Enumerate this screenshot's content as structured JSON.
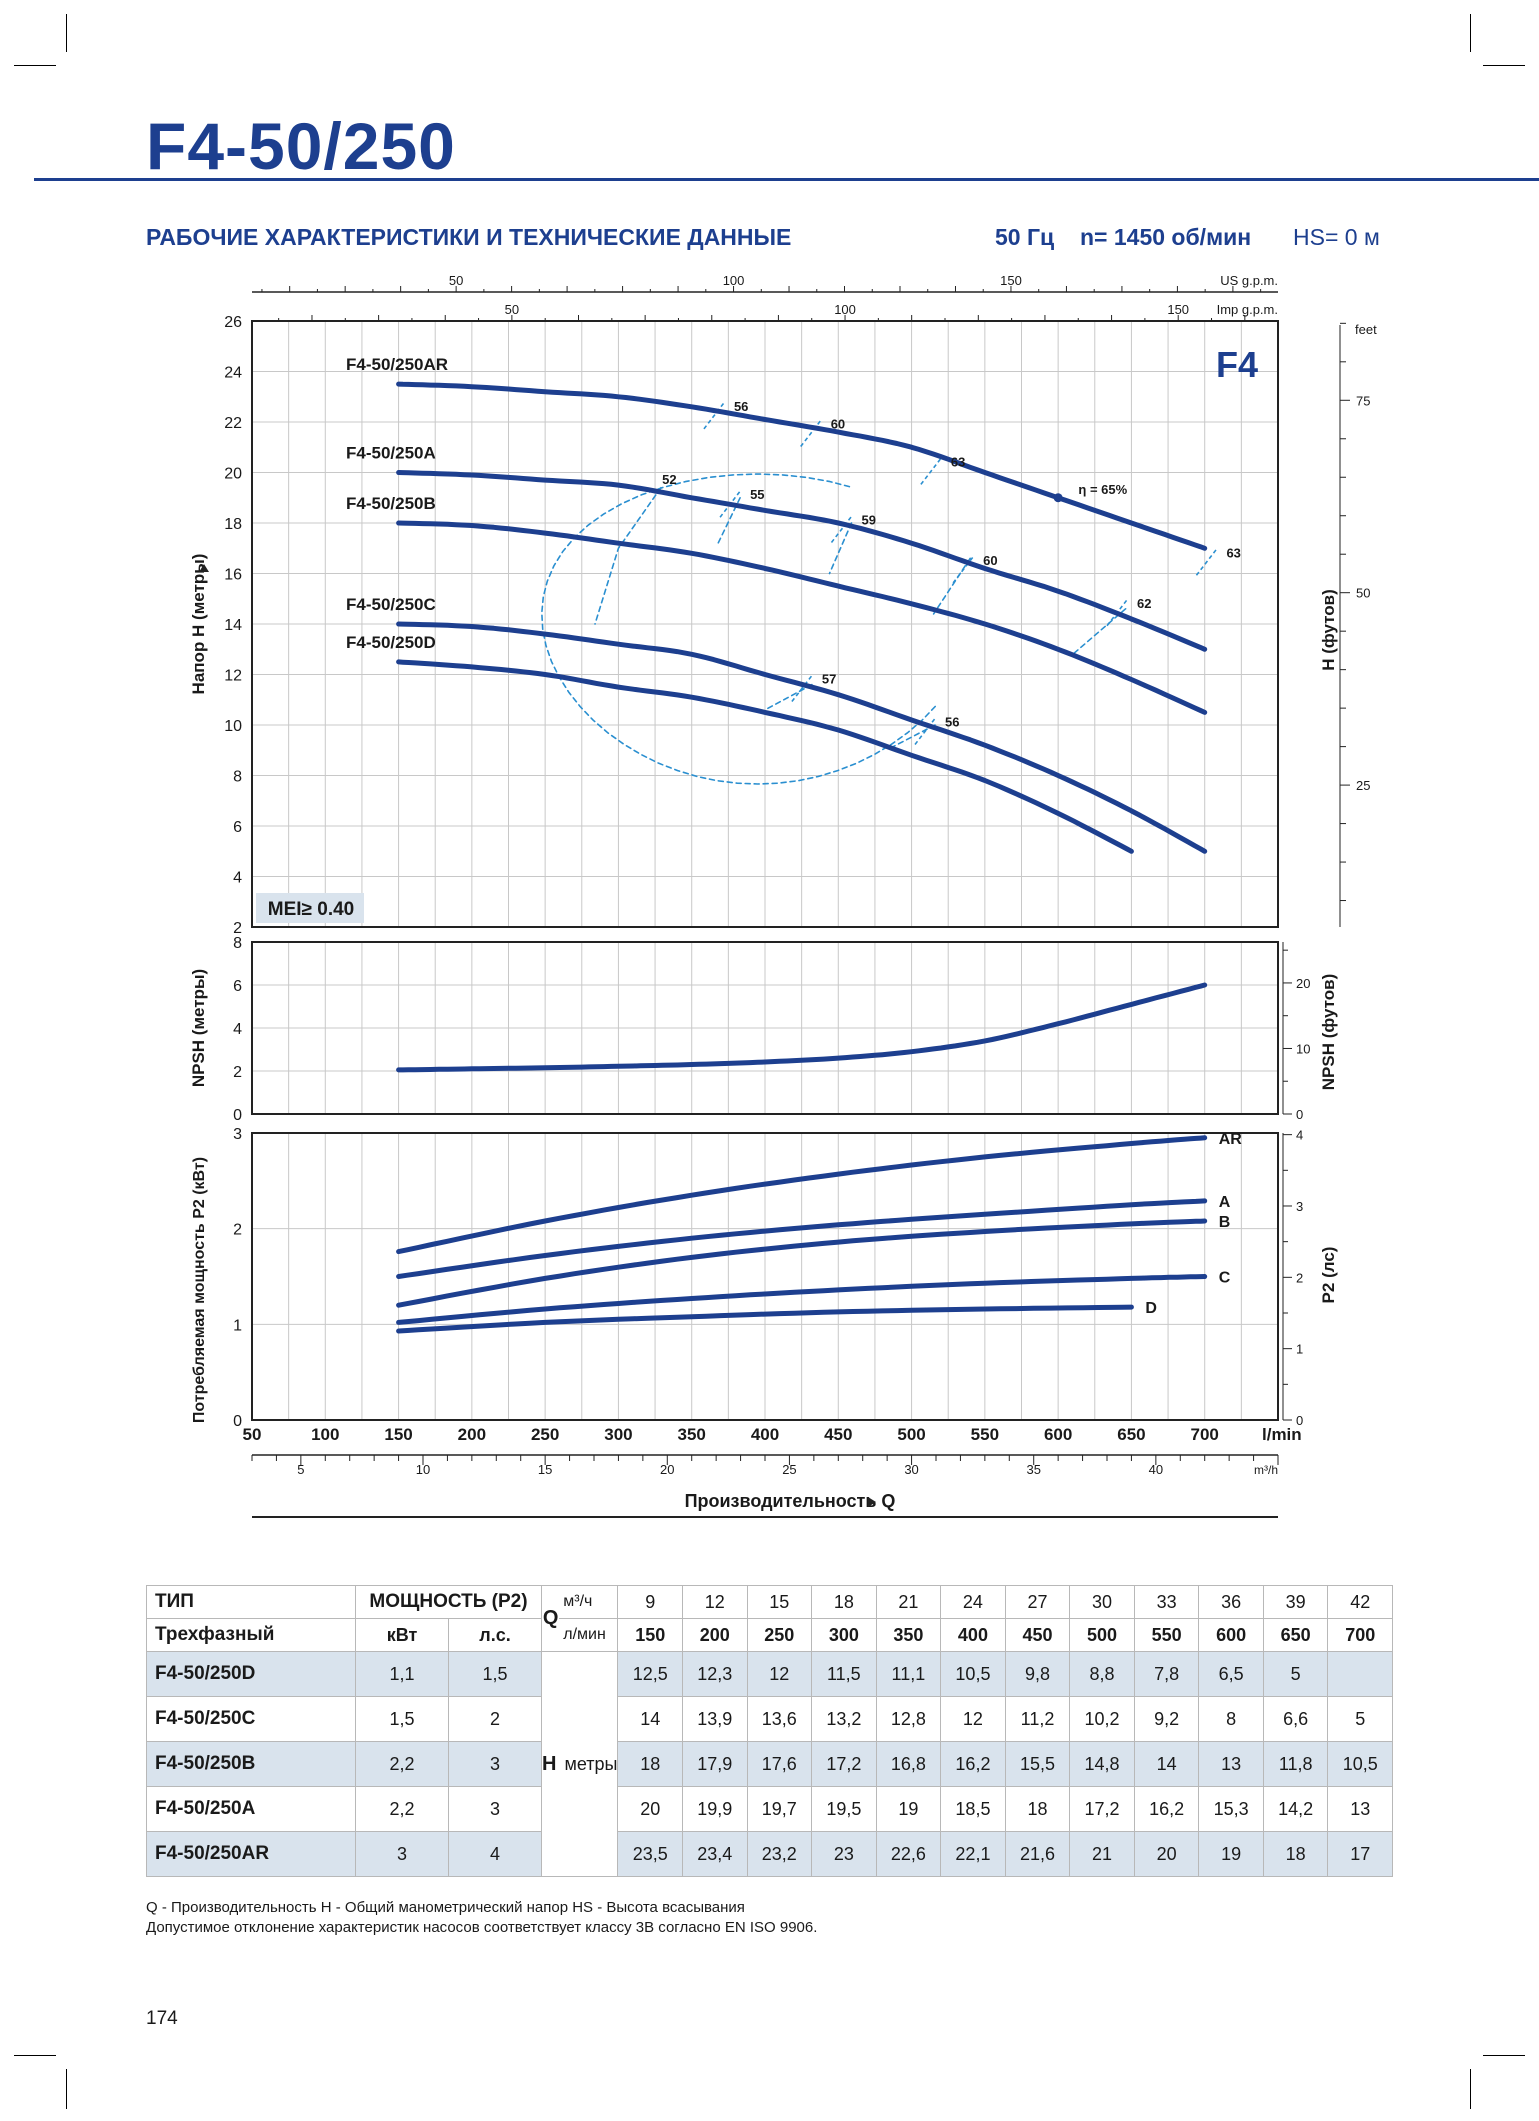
{
  "page": {
    "title": "F4-50/250",
    "subtitle": "РАБОЧИЕ ХАРАКТЕРИСТИКИ И ТЕХНИЧЕСКИЕ ДАННЫЕ",
    "frequency": "50 Гц",
    "speed": "n= 1450 об/мин",
    "hs": "HS= 0 м",
    "page_number": "174",
    "legend_line1": "Q - Производительность   H - Общий манометрический напор   HS - Высота всасывания",
    "legend_line2": "Допустимое отклонение характеристик насосов соответствует классу 3B согласно EN ISO 9906."
  },
  "colors": {
    "brand": "#1d3f8f",
    "curve": "#1d3f8f",
    "efficiency": "#2a8fd0",
    "grid": "#c8c8c8",
    "shade": "#d9e3ed"
  },
  "chart_data": [
    {
      "type": "line",
      "name": "head",
      "ylabel": "Напор H (метры)",
      "ylabel_right": "H (футов)",
      "xlim": [
        50,
        750
      ],
      "ylim": [
        2,
        26
      ],
      "yticks": [
        2,
        4,
        6,
        8,
        10,
        12,
        14,
        16,
        18,
        20,
        22,
        24,
        26
      ],
      "yticks_right": {
        "unit": "feet",
        "values": [
          25,
          50,
          75
        ]
      },
      "top_axis_us": {
        "label": "US g.p.m.",
        "ticks": [
          50,
          100,
          150
        ]
      },
      "top_axis_imp": {
        "label": "Imp g.p.m.",
        "ticks": [
          50,
          100,
          150
        ]
      },
      "badge": "F4",
      "mei": "MEI≥ 0.40",
      "series": [
        {
          "name": "F4-50/250AR",
          "x": [
            150,
            200,
            250,
            300,
            350,
            400,
            450,
            500,
            550,
            600,
            650,
            700
          ],
          "y": [
            23.5,
            23.4,
            23.2,
            23,
            22.6,
            22.1,
            21.6,
            21,
            20,
            19,
            18,
            17
          ]
        },
        {
          "name": "F4-50/250A",
          "x": [
            150,
            200,
            250,
            300,
            350,
            400,
            450,
            500,
            550,
            600,
            650,
            700
          ],
          "y": [
            20,
            19.9,
            19.7,
            19.5,
            19,
            18.5,
            18,
            17.2,
            16.2,
            15.3,
            14.2,
            13
          ]
        },
        {
          "name": "F4-50/250B",
          "x": [
            150,
            200,
            250,
            300,
            350,
            400,
            450,
            500,
            550,
            600,
            650,
            700
          ],
          "y": [
            18,
            17.9,
            17.6,
            17.2,
            16.8,
            16.2,
            15.5,
            14.8,
            14,
            13,
            11.8,
            10.5
          ]
        },
        {
          "name": "F4-50/250C",
          "x": [
            150,
            200,
            250,
            300,
            350,
            400,
            450,
            500,
            550,
            600,
            650,
            700
          ],
          "y": [
            14,
            13.9,
            13.6,
            13.2,
            12.8,
            12,
            11.2,
            10.2,
            9.2,
            8,
            6.6,
            5
          ]
        },
        {
          "name": "F4-50/250D",
          "x": [
            150,
            200,
            250,
            300,
            350,
            400,
            450,
            500,
            550,
            600,
            650
          ],
          "y": [
            12.5,
            12.3,
            12,
            11.5,
            11.1,
            10.5,
            9.8,
            8.8,
            7.8,
            6.5,
            5
          ]
        }
      ],
      "efficiency_labels": [
        {
          "text": "56",
          "x": 372,
          "y": 22.6
        },
        {
          "text": "60",
          "x": 438,
          "y": 21.9
        },
        {
          "text": "63",
          "x": 520,
          "y": 20.4
        },
        {
          "text": "η = 65%",
          "x": 607,
          "y": 19.3
        },
        {
          "text": "63",
          "x": 708,
          "y": 16.8
        },
        {
          "text": "52",
          "x": 323,
          "y": 19.7
        },
        {
          "text": "55",
          "x": 383,
          "y": 19.1
        },
        {
          "text": "59",
          "x": 459,
          "y": 18.1
        },
        {
          "text": "60",
          "x": 542,
          "y": 16.5
        },
        {
          "text": "62",
          "x": 647,
          "y": 14.8
        },
        {
          "text": "57",
          "x": 432,
          "y": 11.8
        },
        {
          "text": "56",
          "x": 516,
          "y": 10.1
        }
      ]
    },
    {
      "type": "line",
      "name": "npsh",
      "ylabel": "NPSH (метры)",
      "ylabel_right": "NPSH (футов)",
      "ylim": [
        0,
        8
      ],
      "yticks": [
        0,
        2,
        4,
        6,
        8
      ],
      "yticks_right": [
        0,
        10,
        20
      ],
      "series": [
        {
          "name": "NPSH",
          "x": [
            150,
            200,
            250,
            300,
            350,
            400,
            450,
            500,
            550,
            600,
            650,
            700
          ],
          "y": [
            2.05,
            2.1,
            2.15,
            2.22,
            2.3,
            2.42,
            2.6,
            2.9,
            3.4,
            4.2,
            5.1,
            6.0
          ]
        }
      ]
    },
    {
      "type": "line",
      "name": "power",
      "ylabel": "Потребляемая мощность P2 (кВт)",
      "ylabel_right": "P2 (лс)",
      "ylim": [
        0,
        3
      ],
      "yticks": [
        0,
        1,
        2,
        3
      ],
      "yticks_right": [
        0,
        1,
        2,
        3,
        4
      ],
      "xlabel": "Производительность Q",
      "xunit": "l/min",
      "xticks": [
        50,
        100,
        150,
        200,
        250,
        300,
        350,
        400,
        450,
        500,
        550,
        600,
        650,
        700
      ],
      "m3h_axis": {
        "label": "m³/h",
        "ticks": [
          5,
          10,
          15,
          20,
          25,
          30,
          35,
          40
        ]
      },
      "series": [
        {
          "name": "AR",
          "x": [
            150,
            250,
            350,
            450,
            550,
            650,
            700
          ],
          "y": [
            1.76,
            2.08,
            2.35,
            2.57,
            2.75,
            2.89,
            2.95
          ]
        },
        {
          "name": "A",
          "x": [
            150,
            250,
            350,
            450,
            550,
            650,
            700
          ],
          "y": [
            1.5,
            1.72,
            1.9,
            2.04,
            2.15,
            2.25,
            2.29
          ]
        },
        {
          "name": "B",
          "x": [
            150,
            250,
            350,
            450,
            550,
            650,
            700
          ],
          "y": [
            1.2,
            1.48,
            1.7,
            1.86,
            1.97,
            2.05,
            2.08
          ]
        },
        {
          "name": "C",
          "x": [
            150,
            250,
            350,
            450,
            550,
            650,
            700
          ],
          "y": [
            1.02,
            1.16,
            1.27,
            1.36,
            1.43,
            1.48,
            1.5
          ]
        },
        {
          "name": "D",
          "x": [
            150,
            250,
            350,
            450,
            550,
            650
          ],
          "y": [
            0.93,
            1.02,
            1.08,
            1.13,
            1.16,
            1.18
          ]
        }
      ]
    }
  ],
  "table": {
    "h_type": "ТИП",
    "h_phase": "Трехфазный",
    "h_power": "МОЩНОСТЬ (P2)",
    "h_kw": "кВт",
    "h_hp": "л.с.",
    "h_q": "Q",
    "h_m3h": "м³/ч",
    "h_lmin": "л/мин",
    "h_label": "H",
    "h_unit": "метры",
    "q_m3h": [
      "9",
      "12",
      "15",
      "18",
      "21",
      "24",
      "27",
      "30",
      "33",
      "36",
      "39",
      "42"
    ],
    "q_lmin": [
      "150",
      "200",
      "250",
      "300",
      "350",
      "400",
      "450",
      "500",
      "550",
      "600",
      "650",
      "700"
    ],
    "rows": [
      {
        "model": "F4-50/250D",
        "kw": "1,1",
        "hp": "1,5",
        "h": [
          "12,5",
          "12,3",
          "12",
          "11,5",
          "11,1",
          "10,5",
          "9,8",
          "8,8",
          "7,8",
          "6,5",
          "5",
          ""
        ]
      },
      {
        "model": "F4-50/250C",
        "kw": "1,5",
        "hp": "2",
        "h": [
          "14",
          "13,9",
          "13,6",
          "13,2",
          "12,8",
          "12",
          "11,2",
          "10,2",
          "9,2",
          "8",
          "6,6",
          "5"
        ]
      },
      {
        "model": "F4-50/250B",
        "kw": "2,2",
        "hp": "3",
        "h": [
          "18",
          "17,9",
          "17,6",
          "17,2",
          "16,8",
          "16,2",
          "15,5",
          "14,8",
          "14",
          "13",
          "11,8",
          "10,5"
        ]
      },
      {
        "model": "F4-50/250A",
        "kw": "2,2",
        "hp": "3",
        "h": [
          "20",
          "19,9",
          "19,7",
          "19,5",
          "19",
          "18,5",
          "18",
          "17,2",
          "16,2",
          "15,3",
          "14,2",
          "13"
        ]
      },
      {
        "model": "F4-50/250AR",
        "kw": "3",
        "hp": "4",
        "h": [
          "23,5",
          "23,4",
          "23,2",
          "23",
          "22,6",
          "22,1",
          "21,6",
          "21",
          "20",
          "19",
          "18",
          "17"
        ]
      }
    ]
  }
}
